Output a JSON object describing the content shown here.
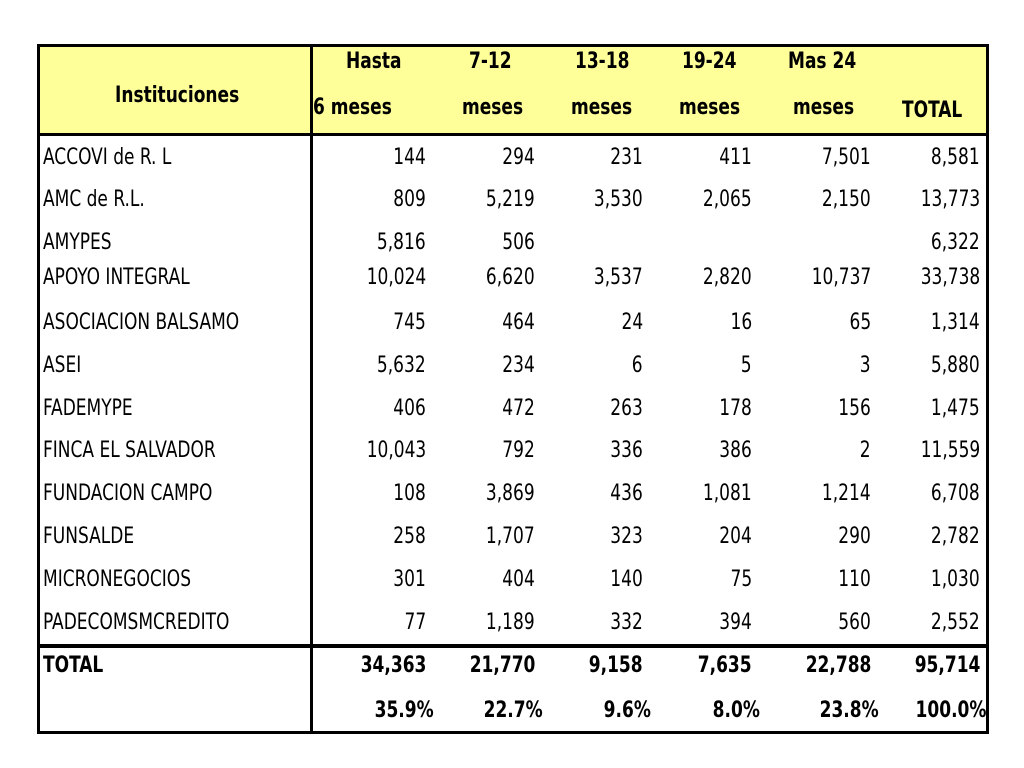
{
  "header": {
    "institutions_label": "Instituciones",
    "columns": [
      {
        "line1": "Hasta",
        "line2": "6 meses"
      },
      {
        "line1": "7-12",
        "line2": "meses"
      },
      {
        "line1": "13-18",
        "line2": "meses"
      },
      {
        "line1": "19-24",
        "line2": "meses"
      },
      {
        "line1": "Mas 24",
        "line2": "meses"
      },
      {
        "line1": "",
        "line2": "TOTAL"
      }
    ]
  },
  "rows": [
    {
      "name": "ACCOVI de R. L",
      "values": [
        "144",
        "294",
        "231",
        "411",
        "7,501",
        "8,581"
      ]
    },
    {
      "name": "AMC de R.L.",
      "values": [
        "809",
        "5,219",
        "3,530",
        "2,065",
        "2,150",
        "13,773"
      ]
    },
    {
      "name": "AMYPES",
      "values": [
        "5,816",
        "506",
        "",
        "",
        "",
        "6,322"
      ]
    },
    {
      "name": "APOYO INTEGRAL",
      "values": [
        "10,024",
        "6,620",
        "3,537",
        "2,820",
        "10,737",
        "33,738"
      ]
    },
    {
      "name": "ASOCIACION BALSAMO",
      "values": [
        "745",
        "464",
        "24",
        "16",
        "65",
        "1,314"
      ]
    },
    {
      "name": "ASEI",
      "values": [
        "5,632",
        "234",
        "6",
        "5",
        "3",
        "5,880"
      ]
    },
    {
      "name": "FADEMYPE",
      "values": [
        "406",
        "472",
        "263",
        "178",
        "156",
        "1,475"
      ]
    },
    {
      "name": "FINCA EL SALVADOR",
      "values": [
        "10,043",
        "792",
        "336",
        "386",
        "2",
        "11,559"
      ]
    },
    {
      "name": "FUNDACION CAMPO",
      "values": [
        "108",
        "3,869",
        "436",
        "1,081",
        "1,214",
        "6,708"
      ]
    },
    {
      "name": "FUNSALDE",
      "values": [
        "258",
        "1,707",
        "323",
        "204",
        "290",
        "2,782"
      ]
    },
    {
      "name": "MICRONEGOCIOS",
      "values": [
        "301",
        "404",
        "140",
        "75",
        "110",
        "1,030"
      ]
    },
    {
      "name": "PADECOMSMCREDITO",
      "values": [
        "77",
        "1,189",
        "332",
        "394",
        "560",
        "2,552"
      ]
    }
  ],
  "total": {
    "label": "TOTAL",
    "values": [
      "34,363",
      "21,770",
      "9,158",
      "7,635",
      "22,788",
      "95,714"
    ],
    "percents": [
      "35.9%",
      "22.7%",
      "9.6%",
      "8.0%",
      "23.8%",
      "100.0%"
    ]
  },
  "colors": {
    "header_bg": "#ffff99",
    "border": "#000000"
  }
}
